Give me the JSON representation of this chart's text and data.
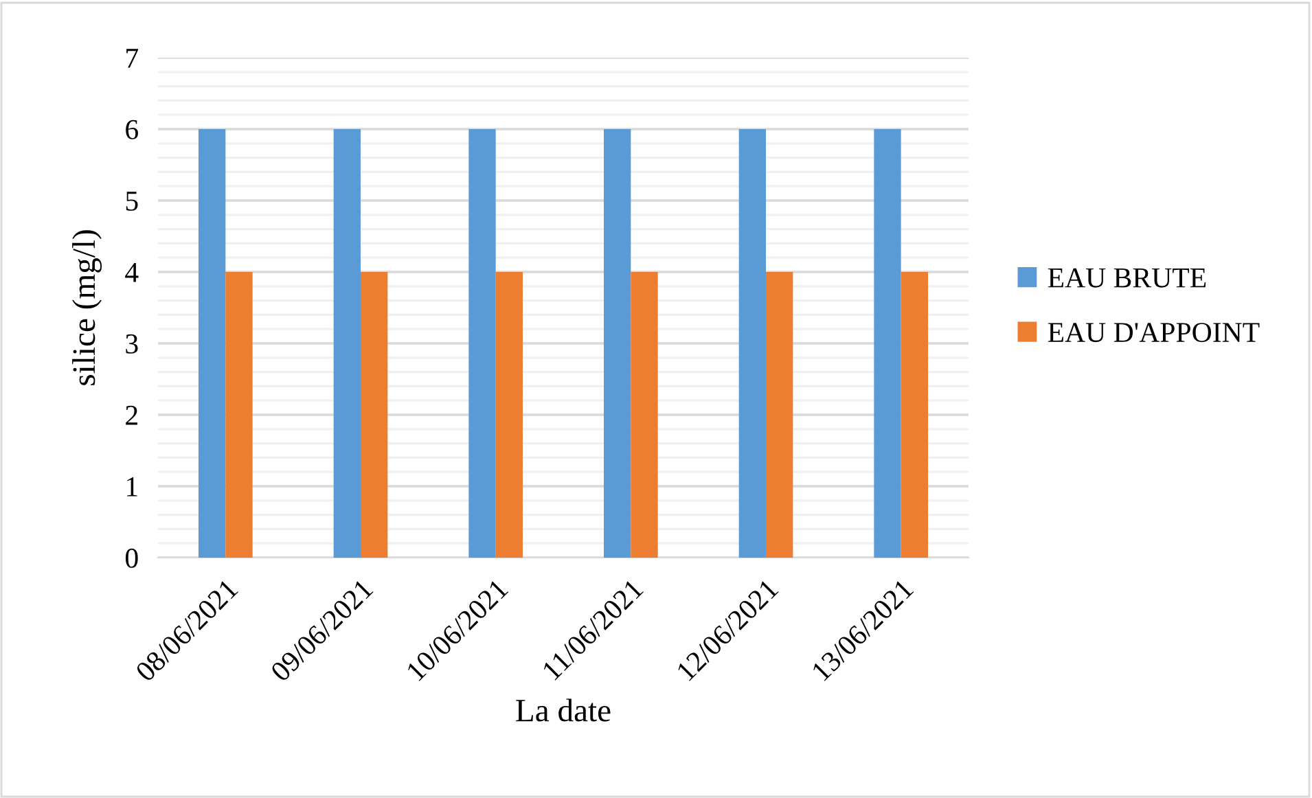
{
  "chart_data": {
    "type": "bar",
    "xlabel": "La date",
    "ylabel": "silice (mg/l)",
    "categories": [
      "08/06/2021",
      "09/06/2021",
      "10/06/2021",
      "11/06/2021",
      "12/06/2021",
      "13/06/2021"
    ],
    "series": [
      {
        "name": "EAU BRUTE",
        "color": "#5b9bd5",
        "values": [
          6,
          6,
          6,
          6,
          6,
          6
        ]
      },
      {
        "name": "EAU D'APPOINT",
        "color": "#ed7d31",
        "values": [
          4,
          4,
          4,
          4,
          4,
          4
        ]
      }
    ],
    "ylim": [
      0,
      7
    ],
    "yticks": [
      0,
      {
        "value": 0.2,
        "label": null
      },
      {
        "value": 0.4,
        "label": null
      },
      {
        "value": 0.6,
        "label": null
      },
      {
        "value": 0.8,
        "label": null
      },
      1,
      {
        "value": 1.2,
        "label": null
      },
      {
        "value": 1.4,
        "label": null
      },
      {
        "value": 1.6,
        "label": null
      },
      {
        "value": 1.8,
        "label": null
      },
      2,
      {
        "value": 2.2,
        "label": null
      },
      {
        "value": 2.4,
        "label": null
      },
      {
        "value": 2.6,
        "label": null
      },
      {
        "value": 2.8,
        "label": null
      },
      3,
      {
        "value": 3.2,
        "label": null
      },
      {
        "value": 3.4,
        "label": null
      },
      {
        "value": 3.6,
        "label": null
      },
      {
        "value": 3.8,
        "label": null
      },
      4,
      {
        "value": 4.2,
        "label": null
      },
      {
        "value": 4.4,
        "label": null
      },
      {
        "value": 4.6,
        "label": null
      },
      {
        "value": 4.8,
        "label": null
      },
      5,
      {
        "value": 5.2,
        "label": null
      },
      {
        "value": 5.4,
        "label": null
      },
      {
        "value": 5.6,
        "label": null
      },
      {
        "value": 5.8,
        "label": null
      },
      6,
      {
        "value": 6.2,
        "label": null
      },
      {
        "value": 6.4,
        "label": null
      },
      {
        "value": 6.6,
        "label": null
      },
      {
        "value": 6.8,
        "label": null
      },
      7
    ],
    "grid": "y",
    "legend": "right"
  }
}
